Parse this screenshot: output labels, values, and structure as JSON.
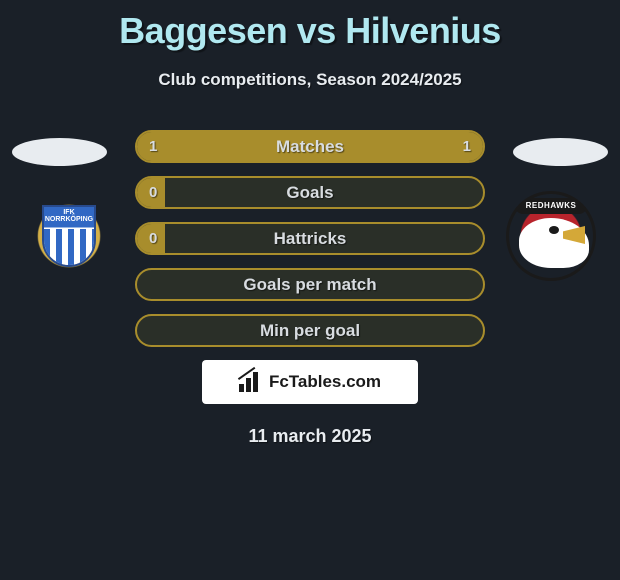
{
  "title": "Baggesen vs Hilvenius",
  "subtitle": "Club competitions, Season 2024/2025",
  "date": "11 march 2025",
  "brand": "FcTables.com",
  "left_logo": {
    "line1": "IFK",
    "line2": "NORRKÖPING"
  },
  "right_logo": {
    "banner": "REDHAWKS"
  },
  "colors": {
    "background": "#1a2028",
    "title": "#b0e8f0",
    "text": "#e8ecf0",
    "bar_fill": "#a88d2c",
    "bar_border": "#a88d2c",
    "bar_empty": "#2a2f28"
  },
  "bars": [
    {
      "label": "Matches",
      "left_val": "1",
      "right_val": "1",
      "left_pct": 50,
      "right_pct": 50
    },
    {
      "label": "Goals",
      "left_val": "0",
      "right_val": "",
      "left_pct": 8,
      "right_pct": 0
    },
    {
      "label": "Hattricks",
      "left_val": "0",
      "right_val": "",
      "left_pct": 8,
      "right_pct": 0
    },
    {
      "label": "Goals per match",
      "left_val": "",
      "right_val": "",
      "left_pct": 0,
      "right_pct": 0
    },
    {
      "label": "Min per goal",
      "left_val": "",
      "right_val": "",
      "left_pct": 0,
      "right_pct": 0
    }
  ]
}
